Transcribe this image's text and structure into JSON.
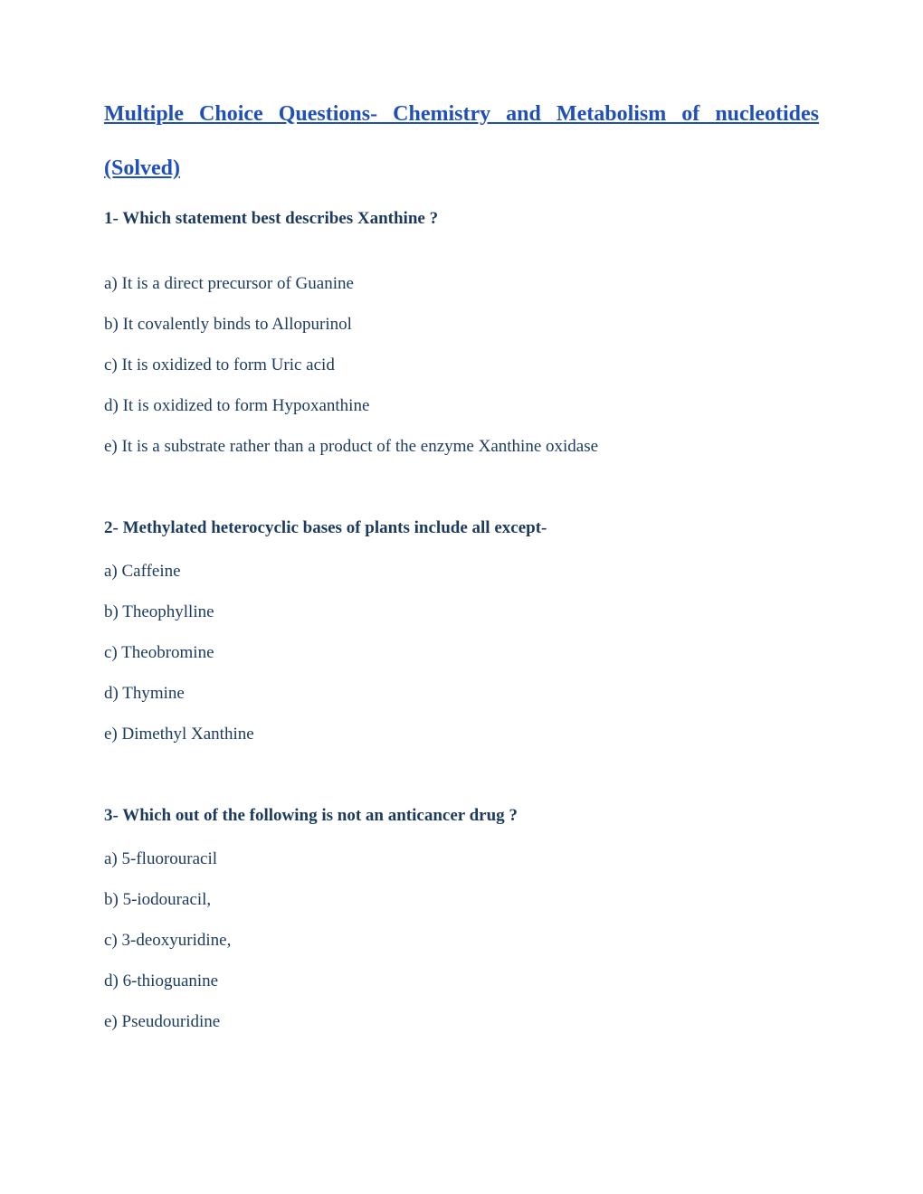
{
  "title": {
    "line1": "Multiple Choice Questions- Chemistry and Metabolism of nucleotides",
    "line2": "(Solved)"
  },
  "questions": [
    {
      "heading": "1- Which statement best describes Xanthine ?",
      "options": [
        "a) It is a direct precursor of Guanine",
        "b) It covalently binds to Allopurinol",
        "c) It is oxidized to form Uric acid",
        "d) It is oxidized to form Hypoxanthine",
        "e) It is a substrate rather than a product of the enzyme Xanthine oxidase"
      ]
    },
    {
      "heading": "2- Methylated heterocyclic bases of plants include all except-",
      "options": [
        "a) Caffeine",
        "b) Theophylline",
        "c) Theobromine",
        "d) Thymine",
        "e) Dimethyl Xanthine"
      ]
    },
    {
      "heading": "3- Which out of the following is not an anticancer drug ?",
      "options": [
        "a) 5-fluorouracil",
        "b) 5-iodouracil,",
        "c) 3-deoxyuridine,",
        "d) 6-thioguanine",
        "e) Pseudouridine"
      ]
    }
  ],
  "colors": {
    "title_color": "#1f4fba",
    "text_color": "#1b3a5e",
    "background": "#ffffff"
  },
  "typography": {
    "title_fontsize": 24,
    "heading_fontsize": 19,
    "option_fontsize": 19,
    "font_family": "Times New Roman"
  }
}
